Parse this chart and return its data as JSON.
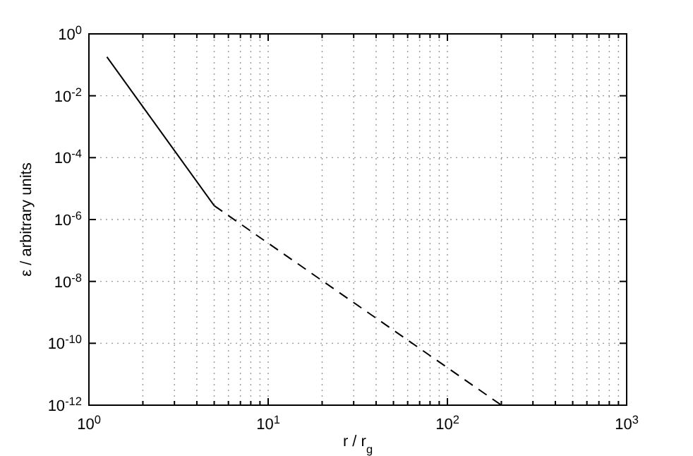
{
  "chart_data": {
    "type": "line",
    "xlabel": "r / r$_{g}$",
    "ylabel": "ε / arbitrary units",
    "log": "xy",
    "grid": true,
    "marker": "none",
    "xlim": [
      1,
      1000
    ],
    "ylim": [
      1e-12,
      1
    ],
    "xticks": [
      {
        "value": 1,
        "label": "10$^{0}$"
      },
      {
        "value": 2,
        "label": null
      },
      {
        "value": 3,
        "label": null
      },
      {
        "value": 4,
        "label": null
      },
      {
        "value": 5,
        "label": null
      },
      {
        "value": 6,
        "label": null
      },
      {
        "value": 7,
        "label": null
      },
      {
        "value": 8,
        "label": null
      },
      {
        "value": 9,
        "label": null
      },
      {
        "value": 10,
        "label": "10$^{1}$"
      },
      {
        "value": 20,
        "label": null
      },
      {
        "value": 30,
        "label": null
      },
      {
        "value": 40,
        "label": null
      },
      {
        "value": 50,
        "label": null
      },
      {
        "value": 60,
        "label": null
      },
      {
        "value": 70,
        "label": null
      },
      {
        "value": 80,
        "label": null
      },
      {
        "value": 90,
        "label": null
      },
      {
        "value": 100,
        "label": "10$^{2}$"
      },
      {
        "value": 200,
        "label": null
      },
      {
        "value": 300,
        "label": null
      },
      {
        "value": 400,
        "label": null
      },
      {
        "value": 500,
        "label": null
      },
      {
        "value": 600,
        "label": null
      },
      {
        "value": 700,
        "label": null
      },
      {
        "value": 800,
        "label": null
      },
      {
        "value": 900,
        "label": null
      },
      {
        "value": 1000,
        "label": "10$^{3}$"
      }
    ],
    "yticks": [
      {
        "value": 1,
        "label": "10$^{0}$"
      },
      {
        "value": 0.01,
        "label": "10$^{-2}$"
      },
      {
        "value": 0.0001,
        "label": "10$^{-4}$"
      },
      {
        "value": 1e-06,
        "label": "10$^{-6}$"
      },
      {
        "value": 1e-08,
        "label": "10$^{-8}$"
      },
      {
        "value": 1e-10,
        "label": "10$^{-10}$"
      },
      {
        "value": 1e-12,
        "label": "10$^{-12}$"
      }
    ],
    "series": [
      {
        "color": "#000000",
        "line_style": "solid",
        "x": [
          1.26,
          5
        ],
        "values": [
          0.18,
          2.8e-06
        ]
      },
      {
        "color": "#000000",
        "line_style": "dashed",
        "x": [
          5,
          200
        ],
        "values": [
          2.8e-06,
          1e-12
        ]
      }
    ]
  }
}
